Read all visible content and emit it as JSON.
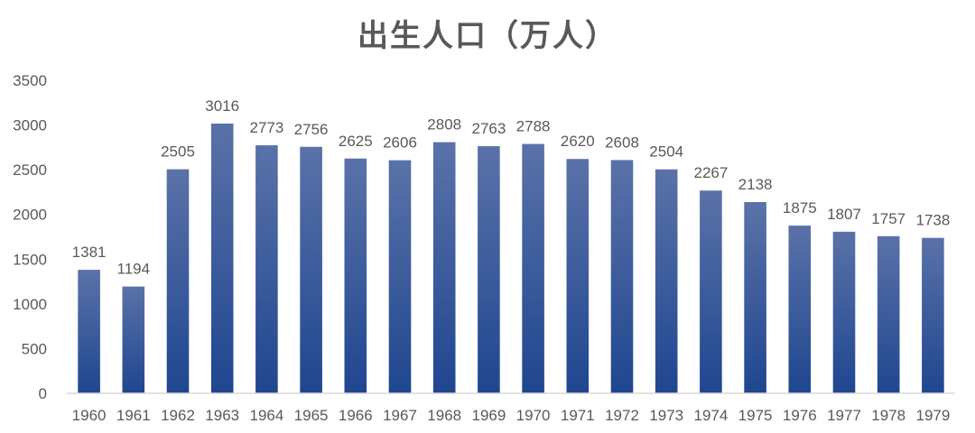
{
  "chart_data": {
    "type": "bar",
    "title": "出生人口（万人）",
    "xlabel": "",
    "ylabel": "",
    "categories": [
      "1960",
      "1961",
      "1962",
      "1963",
      "1964",
      "1965",
      "1966",
      "1967",
      "1968",
      "1969",
      "1970",
      "1971",
      "1972",
      "1973",
      "1974",
      "1975",
      "1976",
      "1977",
      "1978",
      "1979"
    ],
    "values": [
      1381,
      1194,
      2505,
      3016,
      2773,
      2756,
      2625,
      2606,
      2808,
      2763,
      2788,
      2620,
      2608,
      2504,
      2267,
      2138,
      1875,
      1807,
      1757,
      1738
    ],
    "data_labels": [
      "1381",
      "1194",
      "2505",
      "3016",
      "2773",
      "2756",
      "2625",
      "2606",
      "2808",
      "2763",
      "2788",
      "2620",
      "2608",
      "2504",
      "2267",
      "2138",
      "1875",
      "1807",
      "1757",
      "1738"
    ],
    "ylim": [
      0,
      3500
    ],
    "yticks": [
      "0",
      "500",
      "1000",
      "1500",
      "2000",
      "2500",
      "3000",
      "3500"
    ],
    "grid": false,
    "legend": "none",
    "colors": {
      "bar_top": "#5a72a8",
      "bar_bottom": "#1f4690",
      "text": "#595959",
      "axis": "#d9d9d9"
    }
  }
}
